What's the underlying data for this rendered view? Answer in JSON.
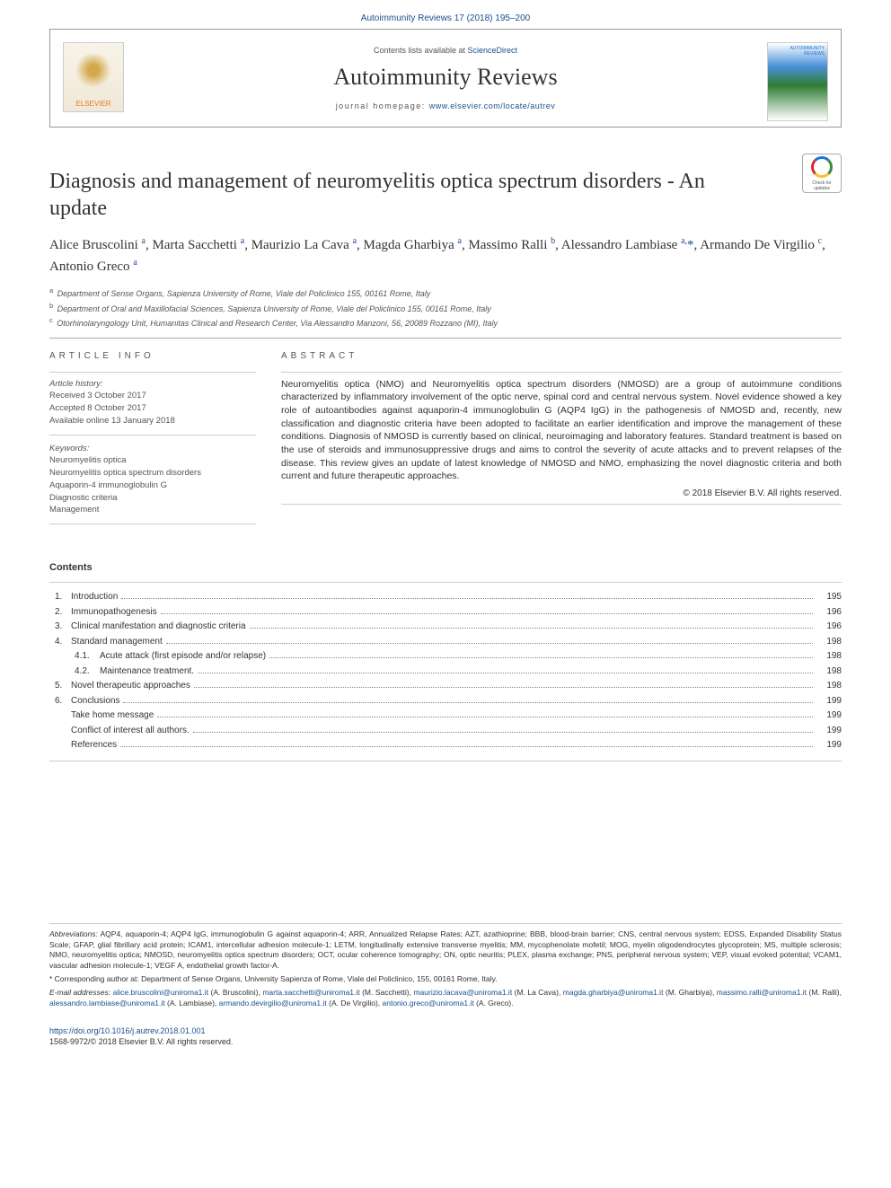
{
  "journal_ref": "Autoimmunity Reviews 17 (2018) 195–200",
  "header": {
    "contents_available": "Contents lists available at ",
    "sciencedirect": "ScienceDirect",
    "journal_name": "Autoimmunity Reviews",
    "homepage_label": "journal homepage: ",
    "homepage_url": "www.elsevier.com/locate/autrev",
    "elsevier": "ELSEVIER"
  },
  "article": {
    "title": "Diagnosis and management of neuromyelitis optica spectrum disorders - An update",
    "authors_html": "Alice Bruscolini <sup>a</sup>, Marta Sacchetti <sup>a</sup>, Maurizio La Cava <sup>a</sup>, Magda Gharbiya <sup>a</sup>, Massimo Ralli <sup>b</sup>, Alessandro Lambiase <sup>a,</sup><span class='corr'>*</span>, Armando De Virgilio <sup>c</sup>, Antonio Greco <sup>a</sup>",
    "affiliations": [
      {
        "sup": "a",
        "text": "Department of Sense Organs, Sapienza University of Rome, Viale del Policlinico 155, 00161 Rome, Italy"
      },
      {
        "sup": "b",
        "text": "Department of Oral and Maxillofacial Sciences, Sapienza University of Rome, Viale del Policlinico 155, 00161 Rome, Italy"
      },
      {
        "sup": "c",
        "text": "Otorhinolaryngology Unit, Humanitas Clinical and Research Center, Via Alessandro Manzoni, 56, 20089 Rozzano (MI), Italy"
      }
    ]
  },
  "info": {
    "header": "ARTICLE INFO",
    "history_label": "Article history:",
    "received": "Received 3 October 2017",
    "accepted": "Accepted 8 October 2017",
    "online": "Available online 13 January 2018",
    "keywords_label": "Keywords:",
    "keywords": [
      "Neuromyelitis optica",
      "Neuromyelitis optica spectrum disorders",
      "Aquaporin-4 immunoglobulin G",
      "Diagnostic criteria",
      "Management"
    ]
  },
  "abstract": {
    "header": "ABSTRACT",
    "text": "Neuromyelitis optica (NMO) and Neuromyelitis optica spectrum disorders (NMOSD) are a group of autoimmune conditions characterized by inflammatory involvement of the optic nerve, spinal cord and central nervous system. Novel evidence showed a key role of autoantibodies against aquaporin-4 immunoglobulin G (AQP4 IgG) in the pathogenesis of NMOSD and, recently, new classification and diagnostic criteria have been adopted to facilitate an earlier identification and improve the management of these conditions. Diagnosis of NMOSD is currently based on clinical, neuroimaging and laboratory features. Standard treatment is based on the use of steroids and immunosuppressive drugs and aims to control the severity of acute attacks and to prevent relapses of the disease. This review gives an update of latest knowledge of NMOSD and NMO, emphasizing the novel diagnostic criteria and both current and future therapeutic approaches.",
    "copyright": "© 2018 Elsevier B.V. All rights reserved."
  },
  "contents": {
    "title": "Contents",
    "items": [
      {
        "num": "1.",
        "text": "Introduction",
        "page": "195",
        "indent": 0
      },
      {
        "num": "2.",
        "text": "Immunopathogenesis",
        "page": "196",
        "indent": 0
      },
      {
        "num": "3.",
        "text": "Clinical manifestation and diagnostic criteria",
        "page": "196",
        "indent": 0
      },
      {
        "num": "4.",
        "text": "Standard management",
        "page": "198",
        "indent": 0
      },
      {
        "num": "4.1.",
        "text": "Acute attack (first episode and/or relapse)",
        "page": "198",
        "indent": 1
      },
      {
        "num": "4.2.",
        "text": "Maintenance treatment.",
        "page": "198",
        "indent": 1
      },
      {
        "num": "5.",
        "text": "Novel therapeutic approaches",
        "page": "198",
        "indent": 0
      },
      {
        "num": "6.",
        "text": "Conclusions",
        "page": "199",
        "indent": 0
      },
      {
        "num": "",
        "text": "Take home message",
        "page": "199",
        "indent": 0
      },
      {
        "num": "",
        "text": "Conflict of interest all authors.",
        "page": "199",
        "indent": 0
      },
      {
        "num": "",
        "text": "References",
        "page": "199",
        "indent": 0
      }
    ]
  },
  "footer": {
    "abbr_label": "Abbreviations:",
    "abbr_text": " AQP4, aquaporin-4; AQP4 IgG, immunoglobulin G against aquaporin-4; ARR, Annualized Relapse Rates; AZT, azathioprine; BBB, blood-brain barrier; CNS, central nervous system; EDSS, Expanded Disability Status Scale; GFAP, glial fibrillary acid protein; ICAM1, intercellular adhesion molecule-1; LETM, longitudinally extensive transverse myelitis; MM, mycophenolate mofetil; MOG, myelin oligodendrocytes glycoprotein; MS, multiple sclerosis; NMO, neuromyelitis optica; NMOSD, neuromyelitis optica spectrum disorders; OCT, ocular coherence tomography; ON, optic neuritis; PLEX, plasma exchange; PNS, peripheral nervous system; VEP, visual evoked potential; VCAM1, vascular adhesion molecule-1; VEGF A, endothelial growth factor-A.",
    "corr_label": "* Corresponding author at:",
    "corr_text": " Department of Sense Organs, University Sapienza of Rome, Viale del Policlinico, 155, 00161 Rome, Italy.",
    "email_label": "E-mail addresses:",
    "emails": [
      {
        "email": "alice.bruscolini@uniroma1.it",
        "name": "(A. Bruscolini)"
      },
      {
        "email": "marta.sacchetti@uniroma1.it",
        "name": "(M. Sacchetti)"
      },
      {
        "email": "maurizio.lacava@uniroma1.it",
        "name": "(M. La Cava)"
      },
      {
        "email": "magda.gharbiya@uniroma1.it",
        "name": "(M. Gharbiya)"
      },
      {
        "email": "massimo.ralli@uniroma1.it",
        "name": "(M. Ralli)"
      },
      {
        "email": "alessandro.lambiase@uniroma1.it",
        "name": "(A. Lambiase)"
      },
      {
        "email": "armando.devirgilio@uniroma1.it",
        "name": "(A. De Virgilio)"
      },
      {
        "email": "antonio.greco@uniroma1.it",
        "name": "(A. Greco)"
      }
    ]
  },
  "doi": {
    "url": "https://doi.org/10.1016/j.autrev.2018.01.001",
    "line": "1568-9972/© 2018 Elsevier B.V. All rights reserved."
  },
  "colors": {
    "link": "#1a4f8f",
    "text": "#333333",
    "muted": "#555555",
    "border": "#aaaaaa"
  }
}
